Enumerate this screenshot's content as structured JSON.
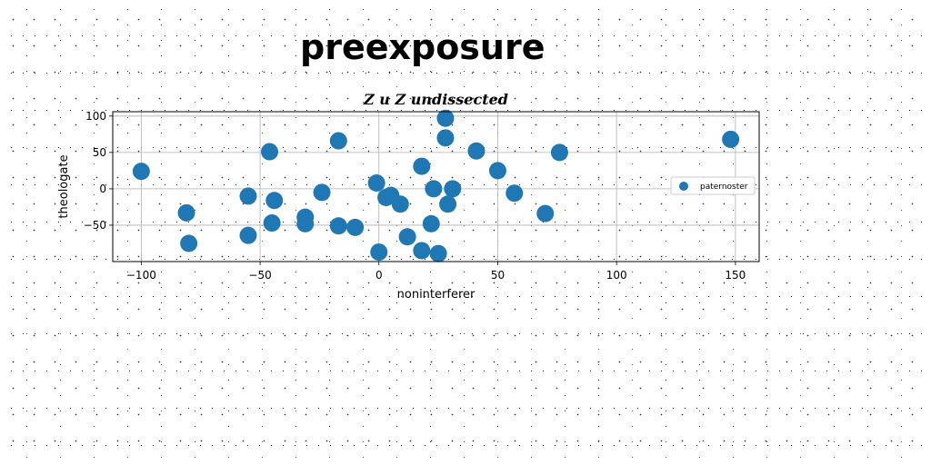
{
  "page": {
    "title": "preexposure"
  },
  "chart_data": {
    "type": "scatter",
    "title": "Z u Z undissected",
    "xlabel": "noninterferer",
    "ylabel": "theologate",
    "xlim": [
      -112,
      160
    ],
    "ylim": [
      -100,
      106
    ],
    "xticks": [
      -100,
      -50,
      0,
      50,
      100,
      150
    ],
    "yticks": [
      100,
      50,
      0,
      -50
    ],
    "grid": true,
    "legend_position": "right",
    "series": [
      {
        "name": "paternoster",
        "color": "#1f77b4",
        "points": [
          [
            -100,
            24
          ],
          [
            -81,
            -33
          ],
          [
            -80,
            -75
          ],
          [
            -55,
            -64
          ],
          [
            -55,
            -10
          ],
          [
            -46,
            51
          ],
          [
            -45,
            -47
          ],
          [
            -44,
            -16
          ],
          [
            -31,
            -39
          ],
          [
            -31,
            -48
          ],
          [
            -24,
            -5
          ],
          [
            -17,
            66
          ],
          [
            -17,
            -51
          ],
          [
            -10,
            -53
          ],
          [
            -1,
            8
          ],
          [
            0,
            -87
          ],
          [
            3,
            -12
          ],
          [
            5,
            -9
          ],
          [
            9,
            -21
          ],
          [
            12,
            -66
          ],
          [
            18,
            -85
          ],
          [
            18,
            31
          ],
          [
            22,
            -48
          ],
          [
            23,
            0
          ],
          [
            25,
            -89
          ],
          [
            28,
            97
          ],
          [
            28,
            70
          ],
          [
            29,
            -21
          ],
          [
            31,
            0
          ],
          [
            41,
            52
          ],
          [
            50,
            25
          ],
          [
            57,
            -6
          ],
          [
            70,
            -34
          ],
          [
            76,
            50
          ],
          [
            148,
            68
          ]
        ]
      }
    ]
  }
}
